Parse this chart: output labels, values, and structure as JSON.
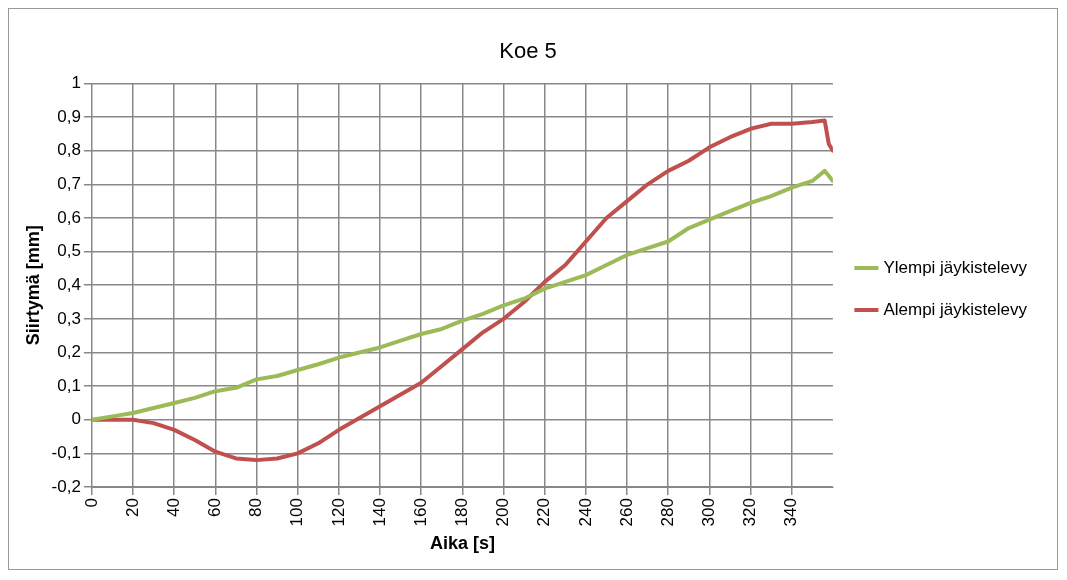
{
  "chart_data": {
    "type": "line",
    "title": "Koe 5",
    "xlabel": "Aika [s]",
    "ylabel": "Siirtymä [mm]",
    "xlim": [
      0,
      360
    ],
    "xticks": [
      0,
      20,
      40,
      60,
      80,
      100,
      120,
      140,
      160,
      180,
      200,
      220,
      240,
      260,
      280,
      300,
      320,
      340
    ],
    "ylim": [
      -0.2,
      1
    ],
    "yticks": [
      {
        "value": -0.2,
        "label": "-0,2"
      },
      {
        "value": -0.1,
        "label": "-0,1"
      },
      0,
      {
        "value": 0.1,
        "label": "0,1"
      },
      {
        "value": 0.2,
        "label": "0,2"
      },
      {
        "value": 0.3,
        "label": "0,3"
      },
      {
        "value": 0.4,
        "label": "0,4"
      },
      {
        "value": 0.5,
        "label": "0,5"
      },
      {
        "value": 0.6,
        "label": "0,6"
      },
      {
        "value": 0.7,
        "label": "0,7"
      },
      {
        "value": 0.8,
        "label": "0,8"
      },
      {
        "value": 0.9,
        "label": "0,9"
      },
      1
    ],
    "grid": true,
    "legend": "right",
    "marker": "none",
    "line_style": "solid",
    "series": [
      {
        "name": "Ylempi jäykistelevy",
        "color": "#9bbb59",
        "x": [
          0,
          10,
          20,
          30,
          40,
          50,
          60,
          70,
          80,
          90,
          100,
          110,
          120,
          130,
          140,
          150,
          160,
          170,
          180,
          190,
          200,
          210,
          220,
          230,
          240,
          250,
          260,
          270,
          280,
          290,
          300,
          310,
          320,
          330,
          340,
          350,
          356,
          360
        ],
        "values": [
          0,
          0.01,
          0.02,
          0.035,
          0.05,
          0.065,
          0.085,
          0.095,
          0.12,
          0.13,
          0.148,
          0.165,
          0.185,
          0.2,
          0.215,
          0.235,
          0.255,
          0.27,
          0.295,
          0.315,
          0.34,
          0.36,
          0.39,
          0.41,
          0.43,
          0.46,
          0.49,
          0.51,
          0.53,
          0.57,
          0.595,
          0.62,
          0.645,
          0.665,
          0.69,
          0.71,
          0.74,
          0.71
        ]
      },
      {
        "name": "Alempi jäykistelevy",
        "color": "#c0504d",
        "x": [
          0,
          10,
          20,
          30,
          40,
          50,
          60,
          70,
          80,
          90,
          100,
          110,
          120,
          130,
          140,
          150,
          160,
          170,
          180,
          190,
          200,
          210,
          220,
          230,
          240,
          250,
          260,
          270,
          280,
          290,
          300,
          310,
          320,
          330,
          340,
          350,
          356,
          358,
          360
        ],
        "values": [
          0,
          0,
          0,
          -0.01,
          -0.03,
          -0.06,
          -0.095,
          -0.115,
          -0.12,
          -0.115,
          -0.1,
          -0.07,
          -0.03,
          0.005,
          0.04,
          0.075,
          0.11,
          0.16,
          0.21,
          0.26,
          0.3,
          0.35,
          0.41,
          0.46,
          0.53,
          0.6,
          0.65,
          0.7,
          0.74,
          0.77,
          0.81,
          0.84,
          0.865,
          0.88,
          0.88,
          0.885,
          0.89,
          0.82,
          0.8
        ]
      }
    ]
  }
}
